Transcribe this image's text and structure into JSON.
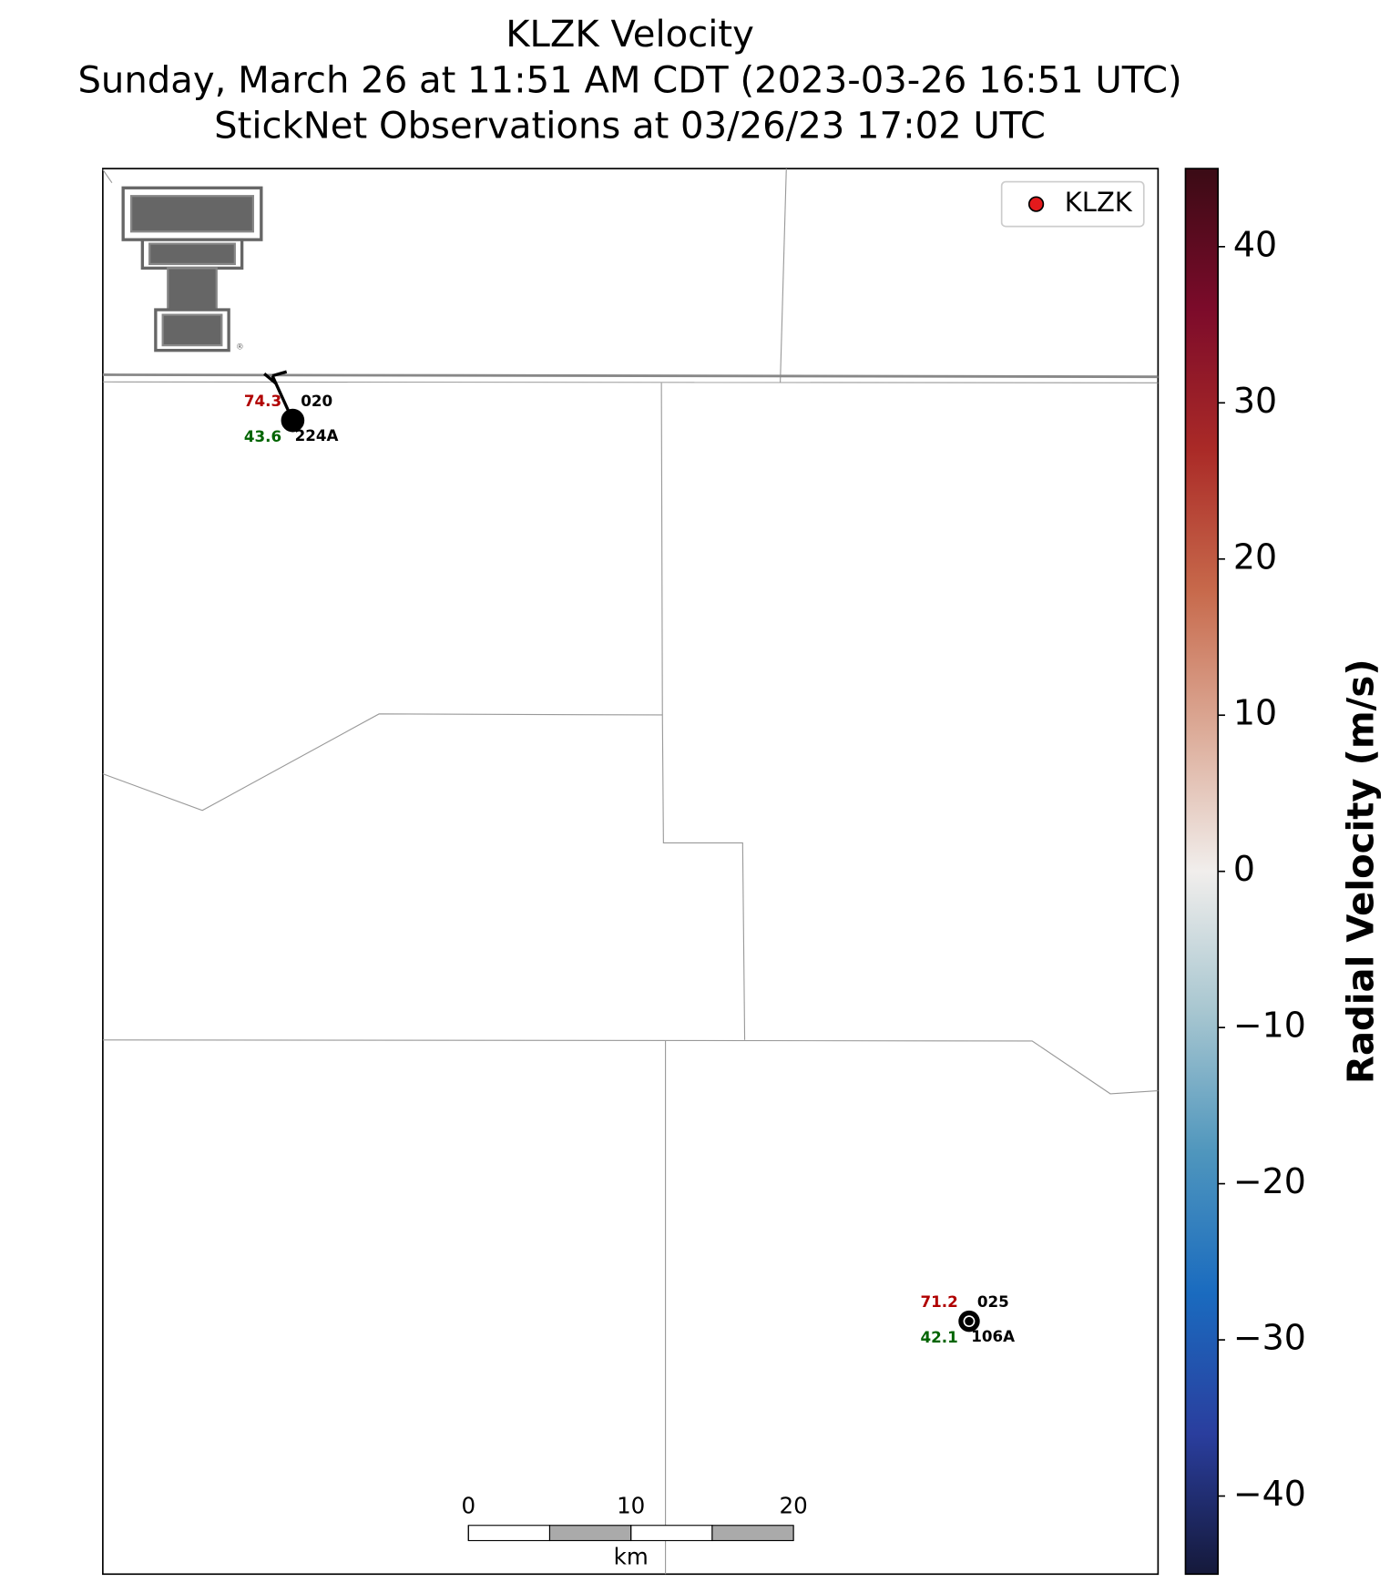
{
  "chart_data": {
    "type": "radar-map",
    "title": [
      "KLZK Velocity",
      "Sunday, March 26 at 11:51 AM CDT (2023-03-26 16:51 UTC)",
      "StickNet Observations at 03/26/23 17:02 UTC"
    ],
    "legend": {
      "label": "KLZK",
      "color": "#e41a1c",
      "corner": "upper right"
    },
    "stations": [
      {
        "id": "224A",
        "temperature": 74.3,
        "dewpoint": 43.6,
        "pressure": "020",
        "temperature_color": "#b00000",
        "dewpoint_color": "#006400"
      },
      {
        "id": "106A",
        "temperature": 71.2,
        "dewpoint": 42.1,
        "pressure": "025",
        "temperature_color": "#b00000",
        "dewpoint_color": "#006400"
      }
    ],
    "colorbar": {
      "label": "Radial Velocity (m/s)",
      "lim": [
        -45,
        45
      ],
      "ticks": [
        {
          "value": -40,
          "label": "−40"
        },
        {
          "value": -30,
          "label": "−30"
        },
        {
          "value": -20,
          "label": "−20"
        },
        {
          "value": -10,
          "label": "−10"
        },
        0,
        10,
        20,
        30,
        40
      ],
      "colors": [
        "#15193a",
        "#2a3e9e",
        "#1a6bbf",
        "#4f96bd",
        "#a7c6d0",
        "#f1eeec",
        "#dcab98",
        "#c7694b",
        "#aa2a27",
        "#7c0b2a",
        "#3a0b15"
      ]
    },
    "scale_bar": {
      "ticks": [
        0,
        10,
        20
      ],
      "unit": "km"
    }
  }
}
